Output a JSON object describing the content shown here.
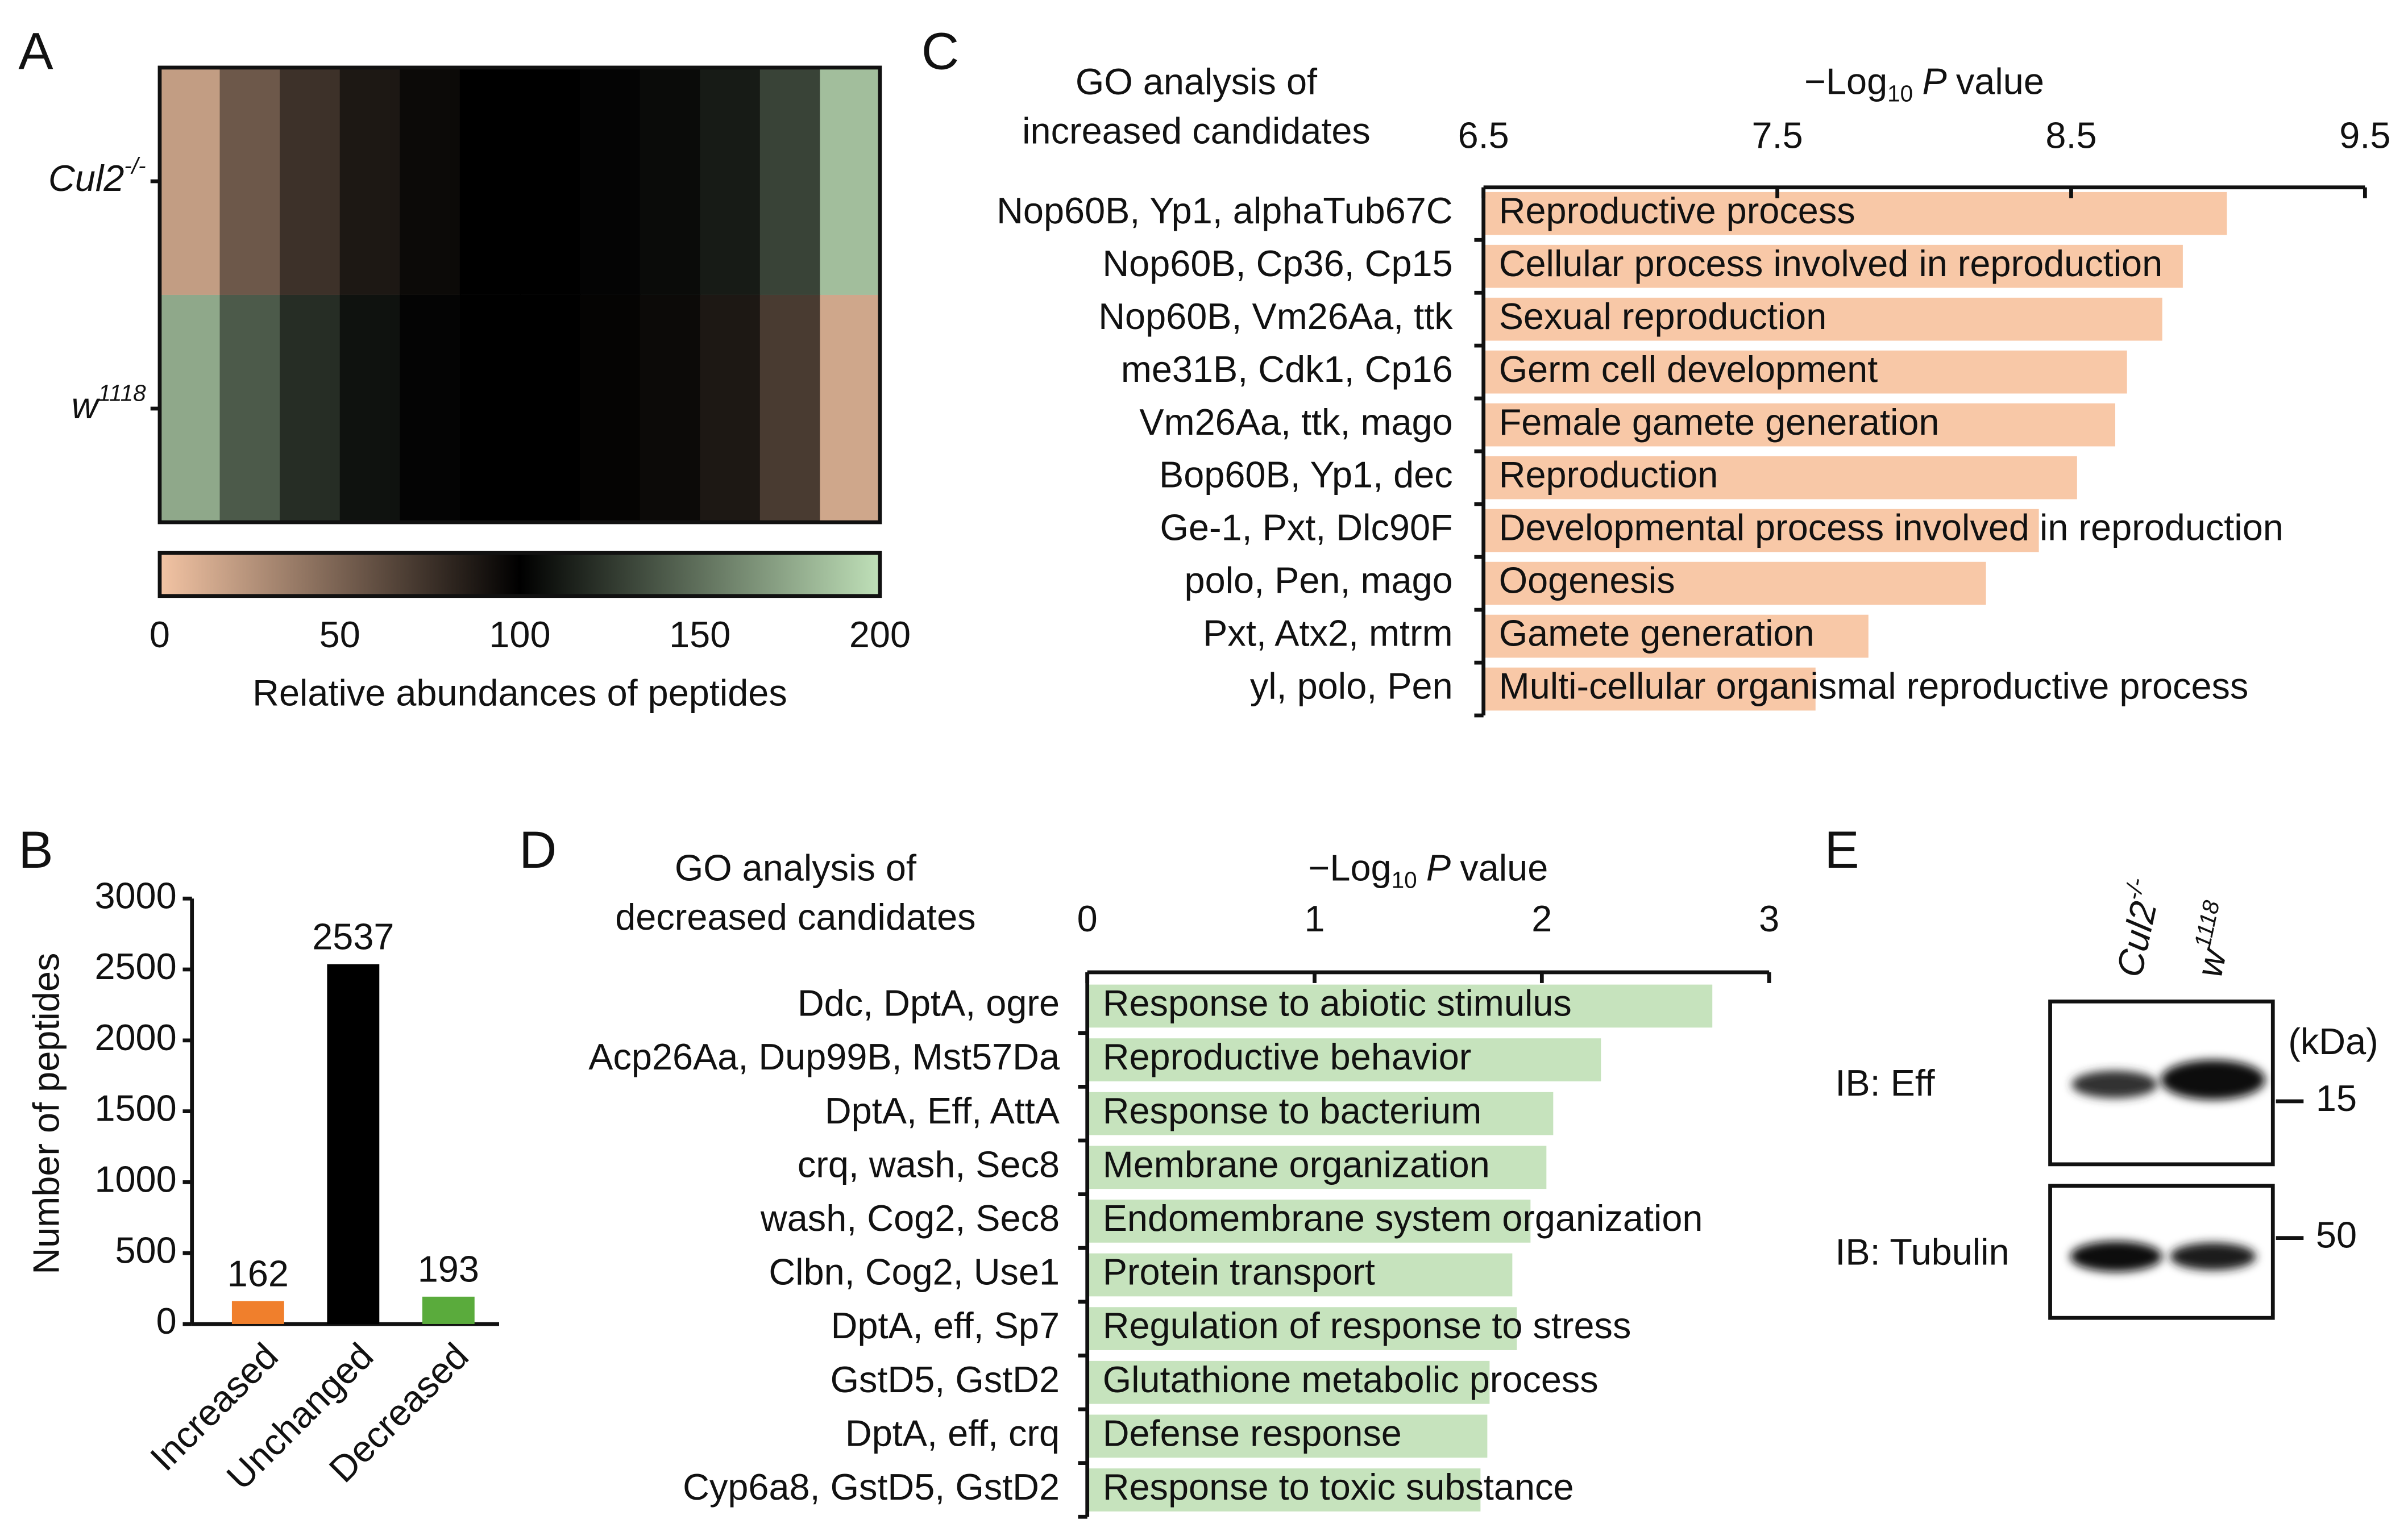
{
  "chart_data": [
    {
      "type": "heatmap",
      "panel": "A",
      "rows": [
        {
          "label": "Cul2",
          "sup": "-/-"
        },
        {
          "label": "w",
          "sup": "1118"
        }
      ],
      "values": [
        [
          20,
          55,
          75,
          88,
          95,
          100,
          100,
          102,
          105,
          112,
          130,
          185
        ],
        [
          175,
          140,
          120,
          108,
          102,
          100,
          100,
          98,
          95,
          88,
          70,
          15
        ]
      ],
      "colormap": [
        "#f3c4a4",
        "#000000",
        "#bfe0b8"
      ],
      "clim": [
        0,
        200
      ],
      "cticks": [
        0,
        50,
        100,
        150,
        200
      ],
      "colorbar_label": "Relative abundances of peptides"
    },
    {
      "type": "bar",
      "panel": "B",
      "ylabel": "Number of peptides",
      "categories": [
        "Increased",
        "Unchanged",
        "Decreased"
      ],
      "values": [
        162,
        2537,
        193
      ],
      "colors": [
        "#f07f2c",
        "#000000",
        "#5aab3c"
      ],
      "ylim": [
        0,
        3000
      ],
      "yticks": [
        0,
        500,
        1000,
        1500,
        2000,
        2500,
        3000
      ]
    },
    {
      "type": "hbar",
      "panel": "C",
      "title_lines": [
        "GO analysis of",
        "increased candidates"
      ],
      "xlabel": {
        "pre": "−Log",
        "sub": "10",
        "it": "P",
        "post": "value"
      },
      "categories": [
        "Reproductive process",
        "Cellular process involved in reproduction",
        "Sexual reproduction",
        "Germ cell development",
        "Female gamete generation",
        "Reproduction",
        "Developmental process involved in reproduction",
        "Oogenesis",
        "Gamete generation",
        "Multi-cellular organismal reproductive process"
      ],
      "genes": [
        "Nop60B, Yp1, alphaTub67C",
        "Nop60B, Cp36, Cp15",
        "Nop60B, Vm26Aa, ttk",
        "me31B, Cdk1, Cp16",
        "Vm26Aa, ttk, mago",
        "Bop60B, Yp1, dec",
        "Ge-1, Pxt, Dlc90F",
        "polo, Pen, mago",
        "Pxt, Atx2, mtrm",
        "yl, polo, Pen"
      ],
      "values": [
        9.03,
        8.88,
        8.81,
        8.69,
        8.65,
        8.52,
        8.39,
        8.21,
        7.81,
        7.63
      ],
      "color": "#f8c8a7",
      "xlim": [
        6.5,
        9.5
      ],
      "xticks": [
        6.5,
        7.5,
        8.5,
        9.5
      ]
    },
    {
      "type": "hbar",
      "panel": "D",
      "title_lines": [
        "GO analysis of",
        "decreased candidates"
      ],
      "xlabel": {
        "pre": "−Log",
        "sub": "10",
        "it": "P",
        "post": "value"
      },
      "categories": [
        "Response to abiotic stimulus",
        "Reproductive behavior",
        "Response to bacterium",
        "Membrane organization",
        "Endomembrane system organization",
        "Protein transport",
        "Regulation of response to stress",
        "Glutathione metabolic process",
        "Defense response",
        "Response to toxic substance"
      ],
      "genes": [
        "Ddc, DptA, ogre",
        "Acp26Aa, Dup99B, Mst57Da",
        "DptA, Eff, AttA",
        "crq, wash, Sec8",
        "wash, Cog2, Sec8",
        "Clbn, Cog2, Use1",
        "DptA, eff, Sp7",
        "GstD5, GstD2",
        "DptA, eff, crq",
        "Cyp6a8, GstD5, GstD2"
      ],
      "values": [
        2.75,
        2.26,
        2.05,
        2.02,
        1.95,
        1.87,
        1.89,
        1.77,
        1.76,
        1.73
      ],
      "color": "#c6e3bd",
      "xlim": [
        0,
        3
      ],
      "xticks": [
        0,
        1,
        2,
        3
      ]
    },
    {
      "type": "blot",
      "panel": "E",
      "lanes": [
        {
          "label": "Cul2",
          "sup": "-/-"
        },
        {
          "label": "w",
          "sup": "1118"
        }
      ],
      "blots": [
        "IB: Eff",
        "IB: Tubulin"
      ],
      "unit": "(kDa)",
      "markers": [
        15,
        50
      ]
    }
  ]
}
